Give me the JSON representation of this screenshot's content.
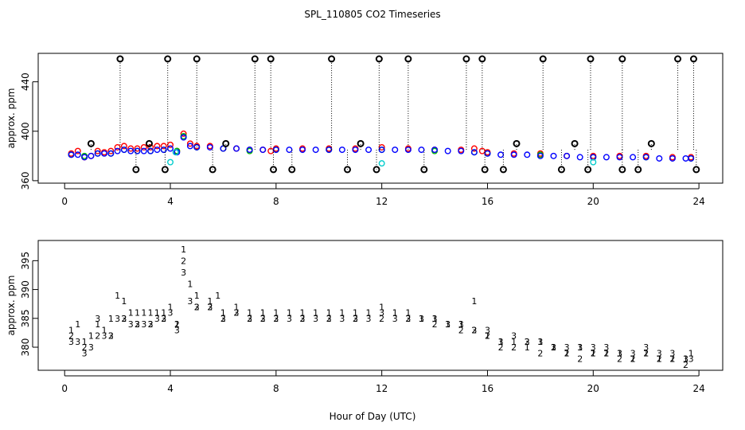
{
  "figure": {
    "title": "SPL_110805  CO2 Timeseries",
    "xlabel": "Hour of Day (UTC)"
  },
  "colors": {
    "s1": "#ff0000",
    "s2": "#00bb00",
    "s3": "#0000ff",
    "s4": "#00cccc",
    "outlier": "#000000"
  },
  "chart_data": [
    {
      "type": "scatter",
      "xlim": [
        -1,
        24.9
      ],
      "ylim": [
        358,
        463
      ],
      "xticks": [
        0,
        4,
        8,
        12,
        16,
        20,
        24
      ],
      "xtick_labels": [
        "0",
        "4",
        "8",
        "12",
        "16",
        "20",
        "24"
      ],
      "yticks": [
        360,
        400,
        440
      ],
      "ytick_labels": [
        "360",
        "400",
        "440"
      ],
      "ylabel": "approx. ppm",
      "grid": false,
      "markers": "circles",
      "series": [
        {
          "x": [
            0.25,
            0.5,
            0.75,
            1.0,
            1.25,
            1.5,
            1.75,
            2.0,
            2.25,
            2.5,
            2.75,
            3.0,
            3.25,
            3.5,
            3.75,
            4.0,
            4.25,
            4.5,
            4.75,
            5.0,
            5.5,
            6.0,
            6.5,
            7.0,
            7.5,
            7.8,
            8.0,
            9.0,
            10.0,
            11.0,
            12.0,
            13.0,
            14.0,
            15.0,
            15.5,
            15.8,
            16.0,
            17.0,
            18.0,
            19.0,
            20.0,
            21.0,
            22.0,
            23.0,
            23.7
          ],
          "y": [
            382,
            384,
            379,
            380,
            384,
            383,
            384,
            387,
            388,
            386,
            386,
            387,
            387,
            388,
            388,
            389,
            384,
            398,
            390,
            388,
            388,
            386,
            386,
            385,
            385,
            384,
            386,
            386,
            386,
            386,
            387,
            386,
            385,
            385,
            386,
            384,
            383,
            382,
            382,
            380,
            380,
            380,
            380,
            379,
            379
          ]
        },
        {
          "x": [
            0.25,
            0.75,
            1.25,
            1.75,
            2.25,
            2.75,
            3.25,
            3.75,
            4.25,
            4.5,
            5.0,
            6.0,
            7.0,
            8.0,
            10.0,
            12.0,
            14.0,
            15.5,
            16.0,
            18.0,
            20.0,
            22.0,
            23.7
          ],
          "y": [
            381,
            380,
            382,
            382,
            385,
            384,
            384,
            385,
            384,
            396,
            387,
            386,
            384,
            385,
            385,
            385,
            384,
            383,
            382,
            381,
            379,
            379,
            378
          ]
        },
        {
          "x": [
            0.25,
            0.5,
            0.75,
            1.0,
            1.25,
            1.5,
            1.75,
            2.0,
            2.25,
            2.5,
            2.75,
            3.0,
            3.25,
            3.5,
            3.75,
            4.0,
            4.25,
            4.5,
            4.75,
            5.0,
            5.5,
            6.0,
            6.5,
            7.0,
            7.5,
            8.0,
            8.5,
            9.0,
            9.5,
            10.0,
            10.5,
            11.0,
            11.5,
            12.0,
            12.5,
            13.0,
            13.5,
            14.0,
            14.5,
            15.0,
            15.5,
            16.0,
            16.5,
            17.0,
            17.5,
            18.0,
            18.5,
            19.0,
            19.5,
            20.0,
            20.5,
            21.0,
            21.5,
            22.0,
            22.5,
            23.0,
            23.5,
            23.7
          ],
          "y": [
            381,
            381,
            379,
            380,
            382,
            382,
            382,
            384,
            385,
            384,
            384,
            384,
            384,
            385,
            385,
            386,
            383,
            395,
            388,
            387,
            387,
            386,
            386,
            385,
            385,
            385,
            385,
            385,
            385,
            385,
            385,
            385,
            385,
            385,
            385,
            385,
            385,
            385,
            384,
            384,
            383,
            382,
            381,
            381,
            381,
            380,
            380,
            380,
            379,
            379,
            379,
            379,
            379,
            379,
            378,
            378,
            378,
            378
          ]
        },
        {
          "x": [
            4.0,
            4.2,
            12.0,
            20.0
          ],
          "y": [
            375,
            383,
            374,
            375
          ]
        },
        {
          "x": [
            2.1,
            3.9,
            5.0,
            7.2,
            7.8,
            10.1,
            11.9,
            13.0,
            15.2,
            15.8,
            18.1,
            19.9,
            21.1,
            23.2,
            23.8,
            2.7,
            3.8,
            5.6,
            7.9,
            8.6,
            10.7,
            11.8,
            13.6,
            15.9,
            16.6,
            18.8,
            19.8,
            21.1,
            21.7,
            23.9,
            1.0,
            3.2,
            6.1,
            11.2,
            17.1,
            19.3,
            22.2
          ],
          "y": [
            463,
            463,
            463,
            463,
            463,
            463,
            463,
            463,
            463,
            463,
            463,
            463,
            463,
            463,
            463,
            369,
            369,
            369,
            369,
            369,
            369,
            369,
            369,
            369,
            369,
            369,
            369,
            369,
            369,
            369,
            390,
            390,
            390,
            390,
            390,
            390,
            390
          ]
        }
      ]
    },
    {
      "type": "scatter",
      "xlim": [
        -1,
        24.9
      ],
      "ylim": [
        376,
        398.5
      ],
      "xticks": [
        0,
        4,
        8,
        12,
        16,
        20,
        24
      ],
      "xtick_labels": [
        "0",
        "4",
        "8",
        "12",
        "16",
        "20",
        "24"
      ],
      "yticks": [
        380,
        385,
        390,
        395
      ],
      "ytick_labels": [
        "380",
        "385",
        "390",
        "395"
      ],
      "ylabel": "approx. ppm",
      "grid": false,
      "markers": "digits 1, 2, 3",
      "series": [
        {
          "marker": "1",
          "x": [
            0.25,
            0.5,
            0.75,
            1.0,
            1.25,
            1.5,
            1.75,
            2.0,
            2.25,
            2.5,
            2.75,
            3.0,
            3.25,
            3.5,
            3.75,
            4.0,
            4.25,
            4.5,
            4.75,
            5.0,
            5.5,
            5.8,
            6.0,
            6.5,
            7.0,
            7.5,
            8.0,
            8.5,
            9.0,
            9.5,
            10.0,
            10.5,
            11.0,
            11.5,
            12.0,
            12.5,
            13.0,
            13.5,
            14.0,
            14.5,
            15.0,
            15.5,
            16.0,
            16.5,
            17.0,
            17.5,
            18.0,
            18.5,
            19.0,
            19.5,
            20.0,
            20.5,
            21.0,
            21.5,
            22.0,
            22.5,
            23.0,
            23.5,
            23.7
          ],
          "y": [
            383,
            384,
            381,
            382,
            384,
            383,
            385,
            389,
            388,
            386,
            386,
            386,
            386,
            386,
            386,
            387,
            384,
            397,
            391,
            389,
            388,
            389,
            386,
            387,
            386,
            386,
            386,
            386,
            386,
            386,
            386,
            386,
            386,
            386,
            387,
            386,
            386,
            385,
            385,
            384,
            384,
            388,
            382,
            381,
            381,
            380,
            381,
            380,
            379,
            380,
            379,
            379,
            379,
            378,
            379,
            378,
            378,
            378,
            379
          ]
        },
        {
          "marker": "2",
          "x": [
            0.25,
            0.75,
            1.25,
            1.75,
            2.25,
            2.75,
            3.25,
            3.75,
            4.25,
            4.5,
            5.0,
            5.5,
            6.0,
            6.5,
            7.0,
            7.5,
            8.0,
            9.0,
            10.0,
            11.0,
            12.0,
            13.0,
            14.0,
            15.0,
            15.5,
            16.0,
            16.5,
            17.0,
            17.5,
            18.0,
            18.5,
            19.0,
            19.5,
            20.0,
            20.5,
            21.0,
            21.5,
            22.0,
            22.5,
            23.0,
            23.5
          ],
          "y": [
            382,
            380,
            382,
            382,
            385,
            384,
            384,
            385,
            384,
            395,
            387,
            387,
            385,
            386,
            385,
            385,
            385,
            385,
            385,
            385,
            385,
            385,
            384,
            383,
            383,
            382,
            380,
            380,
            381,
            379,
            380,
            379,
            378,
            379,
            379,
            378,
            378,
            379,
            378,
            378,
            377
          ]
        },
        {
          "marker": "3",
          "x": [
            0.25,
            0.5,
            0.75,
            1.0,
            1.25,
            1.5,
            1.75,
            2.0,
            2.25,
            2.5,
            2.75,
            3.0,
            3.25,
            3.5,
            3.75,
            4.0,
            4.25,
            4.5,
            4.75,
            5.0,
            5.5,
            6.0,
            6.5,
            7.0,
            7.5,
            8.0,
            8.5,
            9.0,
            9.5,
            10.0,
            10.5,
            11.0,
            11.5,
            12.0,
            12.5,
            13.0,
            13.5,
            14.0,
            14.5,
            15.0,
            15.5,
            16.0,
            16.5,
            17.0,
            17.5,
            18.0,
            18.5,
            19.0,
            19.5,
            20.0,
            20.5,
            21.0,
            21.5,
            22.0,
            22.5,
            23.0,
            23.5,
            23.7
          ],
          "y": [
            381,
            381,
            379,
            380,
            385,
            382,
            382,
            385,
            385,
            384,
            384,
            384,
            384,
            385,
            385,
            386,
            383,
            393,
            388,
            387,
            387,
            385,
            386,
            385,
            385,
            385,
            385,
            385,
            385,
            385,
            385,
            385,
            385,
            386,
            385,
            385,
            385,
            385,
            384,
            384,
            383,
            383,
            381,
            382,
            381,
            381,
            380,
            380,
            380,
            380,
            380,
            379,
            379,
            380,
            379,
            379,
            378,
            378
          ]
        }
      ]
    }
  ]
}
